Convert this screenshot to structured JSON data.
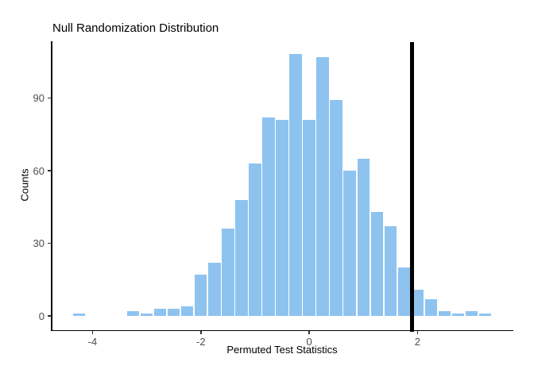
{
  "chart_data": {
    "type": "bar",
    "subtype": "histogram",
    "title": "Null Randomization Distribution",
    "xlabel": "Permuted Test Statistics",
    "ylabel": "Counts",
    "bin_width": 0.25,
    "bin_centers": [
      -4.25,
      -4.0,
      -3.75,
      -3.5,
      -3.25,
      -3.0,
      -2.75,
      -2.5,
      -2.25,
      -2.0,
      -1.75,
      -1.5,
      -1.25,
      -1.0,
      -0.75,
      -0.5,
      -0.25,
      0.0,
      0.25,
      0.5,
      0.75,
      1.0,
      1.25,
      1.5,
      1.75,
      2.0,
      2.25,
      2.5,
      2.75,
      3.0,
      3.25
    ],
    "counts": [
      1,
      0,
      0,
      0,
      2,
      1,
      3,
      3,
      4,
      17,
      22,
      36,
      48,
      63,
      82,
      81,
      108,
      81,
      107,
      89,
      60,
      65,
      43,
      37,
      20,
      11,
      7,
      2,
      1,
      2,
      1
    ],
    "x_tick_values": [
      -4,
      -2,
      0,
      2
    ],
    "x_tick_labels": [
      "-4",
      "-2",
      "0",
      "2"
    ],
    "y_tick_values": [
      0,
      30,
      60,
      90
    ],
    "y_tick_labels": [
      "0",
      "30",
      "60",
      "90"
    ],
    "xlim": [
      -4.7625,
      3.7625
    ],
    "ylim": [
      -5.67,
      113.4
    ],
    "vline_x": 1.9,
    "grid": "off",
    "legend": "none",
    "colors": {
      "bar_fill": "#8EC3F0",
      "bar_gap": "#FFFFFF",
      "vline": "#000000",
      "axis_line": "#000000",
      "tick_mark": "#333333",
      "tick_label": "#4D4D4D",
      "title_text": "#000000",
      "axis_title_text": "#000000",
      "background": "#FFFFFF"
    }
  }
}
